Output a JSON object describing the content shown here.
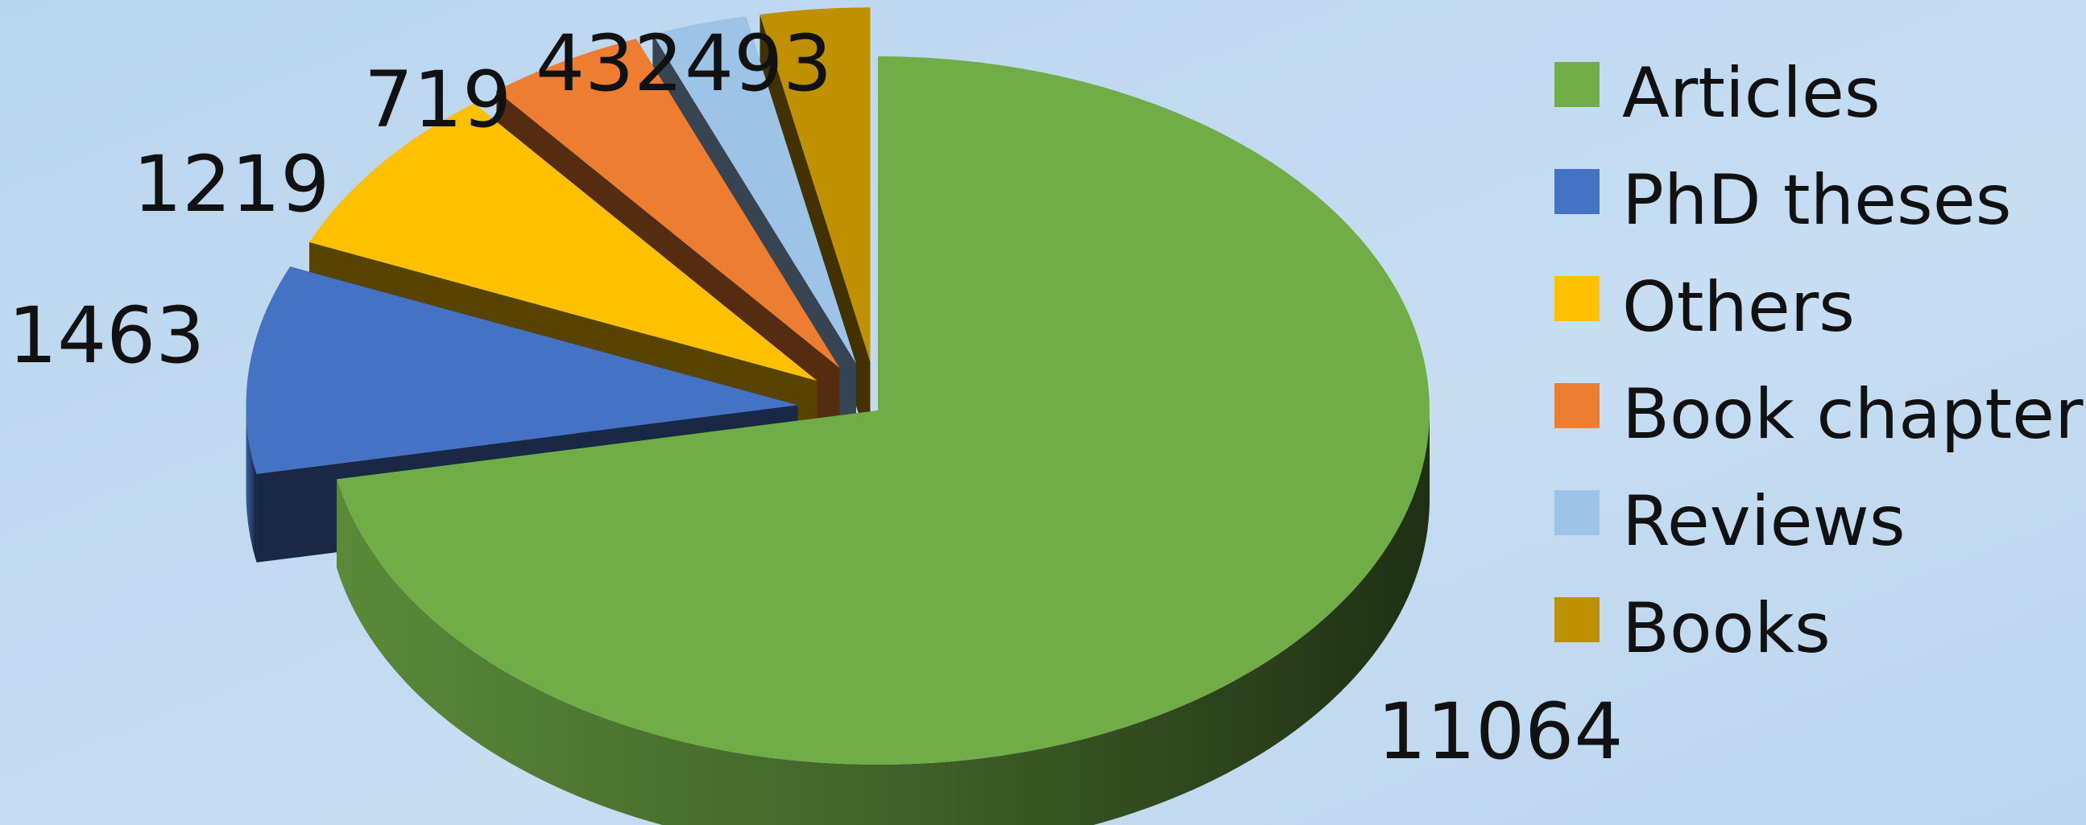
{
  "chart_data": {
    "type": "pie",
    "variant": "3d-exploded",
    "title": "",
    "legend_position": "right",
    "slices": [
      {
        "label": "Articles",
        "value": 11064,
        "color": "#70AD47"
      },
      {
        "label": "PhD theses",
        "value": 1463,
        "color": "#4472C4"
      },
      {
        "label": "Others",
        "value": 1219,
        "color": "#FFC000"
      },
      {
        "label": "Book chapters",
        "value": 719,
        "color": "#ED7D31"
      },
      {
        "label": "Reviews",
        "value": 432,
        "color": "#9DC3E6"
      },
      {
        "label": "Books",
        "value": 493,
        "color": "#BF9000"
      }
    ],
    "background_color": "#BDD7EE"
  }
}
